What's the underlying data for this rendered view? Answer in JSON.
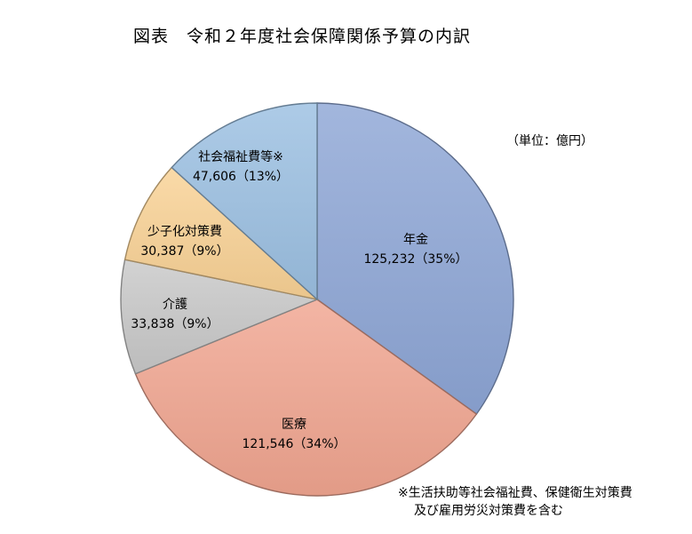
{
  "title": "図表　令和２年度社会保障関係予算の内訳",
  "unit_label": "（単位：億円）",
  "footnote": {
    "line1": "※生活扶助等社会福祉費、保健衛生対策費",
    "line2": "及び雇用労災対策費を含む"
  },
  "chart_data": {
    "type": "pie",
    "start": "12 o'clock",
    "direction": "clockwise",
    "slices": [
      {
        "name": "年金",
        "value": 125232,
        "value_text": "125,232",
        "percent_text": "（35%）",
        "color": "#8EA6D6"
      },
      {
        "name": "医療",
        "value": 121546,
        "value_text": "121,546",
        "percent_text": "（34%）",
        "color": "#F0A590"
      },
      {
        "name": "介護",
        "value": 33838,
        "value_text": "33,838",
        "percent_text": "（9%）",
        "color": "#C8C8C8"
      },
      {
        "name": "少子化対策費",
        "value": 30387,
        "value_text": "30,387",
        "percent_text": "（9%）",
        "color": "#F9D295"
      },
      {
        "name": "社会福祉費等※",
        "value": 47606,
        "value_text": "47,606",
        "percent_text": "（13%）",
        "color": "#9BC0E2"
      }
    ]
  }
}
